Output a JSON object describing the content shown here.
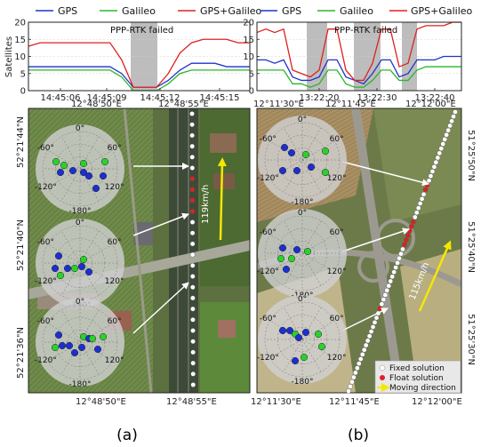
{
  "chart_data": [
    {
      "panel": "a-top",
      "type": "line",
      "ylabel": "Satellites",
      "ylim": [
        0,
        20
      ],
      "yticks": [
        "0",
        "5",
        "10",
        "15",
        "20"
      ],
      "xticks": [
        "14:45:06",
        "14:45:09",
        "14:45:12",
        "14:45:15"
      ],
      "annotation": "PPP-RTK failed",
      "series": [
        {
          "name": "GPS",
          "color": "#1f35c8",
          "values": [
            7,
            7,
            7,
            7,
            7,
            7,
            7,
            7,
            5,
            1,
            1,
            1,
            3,
            6,
            8,
            8,
            8,
            7,
            7,
            7
          ]
        },
        {
          "name": "Galileo",
          "color": "#2bb52b",
          "values": [
            6,
            6,
            6,
            6,
            6,
            6,
            6,
            6,
            4,
            0,
            0,
            0,
            2,
            5,
            6,
            6,
            6,
            6,
            6,
            6
          ]
        },
        {
          "name": "GPS+Galileo",
          "color": "#e02020",
          "values": [
            13,
            14,
            14,
            14,
            14,
            14,
            14,
            14,
            9,
            1,
            1,
            1,
            5,
            11,
            14,
            15,
            15,
            15,
            14,
            14
          ]
        }
      ]
    },
    {
      "panel": "b-top",
      "type": "line",
      "ylim": [
        0,
        20
      ],
      "yticks": [
        "0",
        "5",
        "10",
        "15",
        "20"
      ],
      "xticks": [
        "13:22:20",
        "13:22:30",
        "13:22:40"
      ],
      "annotation": "PPP-RTK failed",
      "series": [
        {
          "name": "GPS",
          "color": "#1f35c8",
          "values": [
            9,
            9,
            8,
            9,
            4,
            3,
            3,
            4,
            9,
            9,
            4,
            3,
            2,
            5,
            9,
            9,
            4,
            5,
            9,
            9,
            9,
            10,
            10,
            10
          ]
        },
        {
          "name": "Galileo",
          "color": "#2bb52b",
          "values": [
            6,
            6,
            6,
            6,
            2,
            2,
            1,
            2,
            6,
            6,
            2,
            1,
            1,
            3,
            6,
            6,
            3,
            3,
            6,
            7,
            7,
            7,
            7,
            7
          ]
        },
        {
          "name": "GPS+Galileo",
          "color": "#e02020",
          "values": [
            17,
            18,
            17,
            18,
            6,
            5,
            4,
            6,
            18,
            18,
            6,
            3,
            3,
            8,
            18,
            18,
            7,
            8,
            18,
            19,
            19,
            19,
            20,
            20
          ]
        }
      ]
    }
  ],
  "legend": {
    "gps": "GPS",
    "galileo": "Galileo",
    "combined": "GPS+Galileo"
  },
  "map_a": {
    "top_labels": [
      "12°48'50\"E",
      "12°48'55\"E"
    ],
    "bottom_labels": [
      "12°48'50\"E",
      "12°48'55\"E"
    ],
    "left_labels": [
      "52°21'44\"N",
      "52°21'40\"N",
      "52°21'36\"N"
    ],
    "speed": "119km/h"
  },
  "map_b": {
    "top_labels": [
      "12°11'30\"E",
      "12°11'45\"E",
      "12°12'00\"E"
    ],
    "bottom_labels": [
      "12°11'30\"E",
      "12°11'45\"E",
      "12°12'00\"E"
    ],
    "right_labels": [
      "51°25'50\"N",
      "51°25'40\"N",
      "51°25'30\"N"
    ],
    "speed": "115km/h"
  },
  "skyplot_labels": {
    "n": "0°",
    "pos60": "60°",
    "neg60": "-60°",
    "pos120": "120°",
    "neg120": "-120°",
    "s": "-180°"
  },
  "map_legend": {
    "fixed": "Fixed solution",
    "float": "Float solution",
    "moving": "Moving direction"
  },
  "captions": {
    "a": "(a)",
    "b": "(b)"
  }
}
